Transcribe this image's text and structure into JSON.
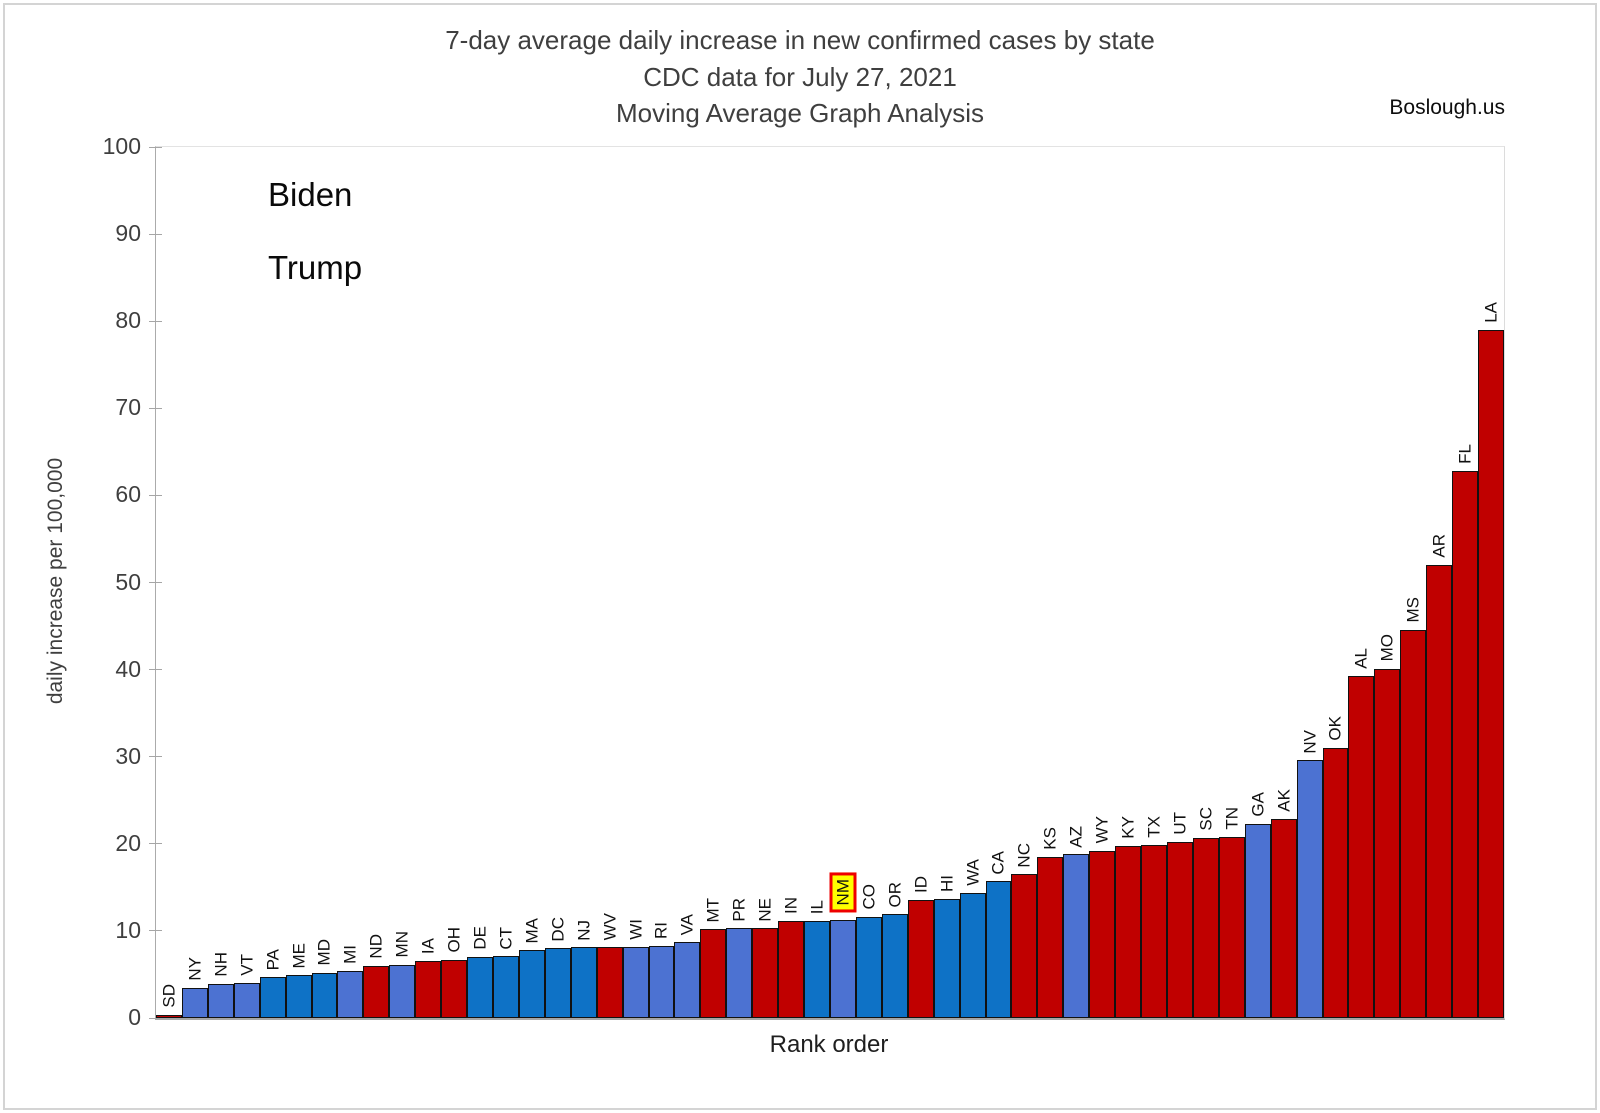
{
  "watermark": "Boslough.us",
  "chart_data": {
    "type": "bar",
    "title_lines": [
      "7-day average daily increase in new confirmed cases by state",
      "CDC data for July 27, 2021",
      "Moving Average Graph Analysis"
    ],
    "xlabel": "Rank order",
    "ylabel": "daily increase per 100,000",
    "ylim": [
      0,
      100
    ],
    "yticks": [
      0,
      10,
      20,
      30,
      40,
      50,
      60,
      70,
      80,
      90,
      100
    ],
    "grid": false,
    "legend_position": "top-left-inside",
    "legend": [
      {
        "label": "Biden",
        "color": "#0e72c6"
      },
      {
        "label": "Trump",
        "color": "#c00000"
      }
    ],
    "palette": {
      "trump": "#c00000",
      "biden": "#0e72c6",
      "biden_alt": "#4c72d2"
    },
    "highlighted_state": "NM",
    "highlight_style": {
      "background": "#ffff00",
      "border": "#ee0000"
    },
    "bars": [
      {
        "state": "SD",
        "value": 0.4,
        "party": "Trump",
        "fill": "trump"
      },
      {
        "state": "NY",
        "value": 3.5,
        "party": "Biden",
        "fill": "biden_alt"
      },
      {
        "state": "NH",
        "value": 3.9,
        "party": "Biden",
        "fill": "biden_alt"
      },
      {
        "state": "VT",
        "value": 4.0,
        "party": "Biden",
        "fill": "biden_alt"
      },
      {
        "state": "PA",
        "value": 4.7,
        "party": "Biden",
        "fill": "biden"
      },
      {
        "state": "ME",
        "value": 4.9,
        "party": "Biden",
        "fill": "biden"
      },
      {
        "state": "MD",
        "value": 5.2,
        "party": "Biden",
        "fill": "biden"
      },
      {
        "state": "MI",
        "value": 5.4,
        "party": "Biden",
        "fill": "biden_alt"
      },
      {
        "state": "ND",
        "value": 6.0,
        "party": "Trump",
        "fill": "trump"
      },
      {
        "state": "MN",
        "value": 6.1,
        "party": "Biden",
        "fill": "biden_alt"
      },
      {
        "state": "IA",
        "value": 6.5,
        "party": "Trump",
        "fill": "trump"
      },
      {
        "state": "OH",
        "value": 6.7,
        "party": "Trump",
        "fill": "trump"
      },
      {
        "state": "DE",
        "value": 7.0,
        "party": "Biden",
        "fill": "biden"
      },
      {
        "state": "CT",
        "value": 7.1,
        "party": "Biden",
        "fill": "biden"
      },
      {
        "state": "MA",
        "value": 7.8,
        "party": "Biden",
        "fill": "biden"
      },
      {
        "state": "DC",
        "value": 8.0,
        "party": "Biden",
        "fill": "biden"
      },
      {
        "state": "NJ",
        "value": 8.1,
        "party": "Biden",
        "fill": "biden"
      },
      {
        "state": "WV",
        "value": 8.1,
        "party": "Trump",
        "fill": "trump"
      },
      {
        "state": "WI",
        "value": 8.2,
        "party": "Biden",
        "fill": "biden_alt"
      },
      {
        "state": "RI",
        "value": 8.3,
        "party": "Biden",
        "fill": "biden_alt"
      },
      {
        "state": "VA",
        "value": 8.7,
        "party": "Biden",
        "fill": "biden_alt"
      },
      {
        "state": "MT",
        "value": 10.2,
        "party": "Trump",
        "fill": "trump"
      },
      {
        "state": "PR",
        "value": 10.3,
        "party": "Biden",
        "fill": "biden_alt"
      },
      {
        "state": "NE",
        "value": 10.3,
        "party": "Trump",
        "fill": "trump"
      },
      {
        "state": "IN",
        "value": 11.1,
        "party": "Trump",
        "fill": "trump"
      },
      {
        "state": "IL",
        "value": 11.1,
        "party": "Biden",
        "fill": "biden"
      },
      {
        "state": "NM",
        "value": 11.3,
        "party": "Biden",
        "fill": "biden_alt"
      },
      {
        "state": "CO",
        "value": 11.6,
        "party": "Biden",
        "fill": "biden"
      },
      {
        "state": "OR",
        "value": 11.9,
        "party": "Biden",
        "fill": "biden"
      },
      {
        "state": "ID",
        "value": 13.5,
        "party": "Trump",
        "fill": "trump"
      },
      {
        "state": "HI",
        "value": 13.7,
        "party": "Biden",
        "fill": "biden"
      },
      {
        "state": "WA",
        "value": 14.4,
        "party": "Biden",
        "fill": "biden"
      },
      {
        "state": "CA",
        "value": 15.7,
        "party": "Biden",
        "fill": "biden"
      },
      {
        "state": "NC",
        "value": 16.5,
        "party": "Trump",
        "fill": "trump"
      },
      {
        "state": "KS",
        "value": 18.5,
        "party": "Trump",
        "fill": "trump"
      },
      {
        "state": "AZ",
        "value": 18.8,
        "party": "Biden",
        "fill": "biden_alt"
      },
      {
        "state": "WY",
        "value": 19.2,
        "party": "Trump",
        "fill": "trump"
      },
      {
        "state": "KY",
        "value": 19.8,
        "party": "Trump",
        "fill": "trump"
      },
      {
        "state": "TX",
        "value": 19.9,
        "party": "Trump",
        "fill": "trump"
      },
      {
        "state": "UT",
        "value": 20.2,
        "party": "Trump",
        "fill": "trump"
      },
      {
        "state": "SC",
        "value": 20.7,
        "party": "Trump",
        "fill": "trump"
      },
      {
        "state": "TN",
        "value": 20.8,
        "party": "Trump",
        "fill": "trump"
      },
      {
        "state": "GA",
        "value": 22.3,
        "party": "Biden",
        "fill": "biden_alt"
      },
      {
        "state": "AK",
        "value": 22.9,
        "party": "Trump",
        "fill": "trump"
      },
      {
        "state": "NV",
        "value": 29.6,
        "party": "Biden",
        "fill": "biden_alt"
      },
      {
        "state": "OK",
        "value": 31.0,
        "party": "Trump",
        "fill": "trump"
      },
      {
        "state": "AL",
        "value": 39.3,
        "party": "Trump",
        "fill": "trump"
      },
      {
        "state": "MO",
        "value": 40.1,
        "party": "Trump",
        "fill": "trump"
      },
      {
        "state": "MS",
        "value": 44.6,
        "party": "Trump",
        "fill": "trump"
      },
      {
        "state": "AR",
        "value": 52.0,
        "party": "Trump",
        "fill": "trump"
      },
      {
        "state": "FL",
        "value": 62.8,
        "party": "Trump",
        "fill": "trump"
      },
      {
        "state": "LA",
        "value": 79.0,
        "party": "Trump",
        "fill": "trump"
      }
    ]
  }
}
